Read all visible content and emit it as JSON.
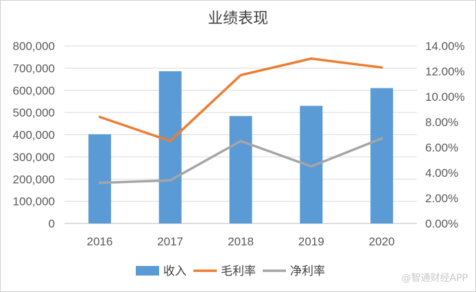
{
  "chart_data": {
    "type": "bar+line",
    "title": "业绩表现",
    "categories": [
      "2016",
      "2017",
      "2018",
      "2019",
      "2020"
    ],
    "series": [
      {
        "name": "收入",
        "type": "bar",
        "axis": "left",
        "color": "#5b9bd5",
        "values": [
          402000,
          686000,
          484000,
          530000,
          610000
        ]
      },
      {
        "name": "毛利率",
        "type": "line",
        "axis": "right",
        "color": "#ed7d31",
        "values": [
          8.4,
          6.5,
          11.7,
          13.0,
          12.3
        ]
      },
      {
        "name": "净利率",
        "type": "line",
        "axis": "right",
        "color": "#a5a5a5",
        "values": [
          3.2,
          3.4,
          6.5,
          4.5,
          6.7
        ]
      }
    ],
    "left_axis": {
      "min": 0,
      "max": 800000,
      "ticks": [
        "0",
        "100,000",
        "200,000",
        "300,000",
        "400,000",
        "500,000",
        "600,000",
        "700,000",
        "800,000"
      ]
    },
    "right_axis": {
      "min": 0,
      "max": 14,
      "ticks": [
        "0.00%",
        "2.00%",
        "4.00%",
        "6.00%",
        "8.00%",
        "10.00%",
        "12.00%",
        "14.00%"
      ]
    },
    "grid": true,
    "legend_position": "bottom"
  },
  "watermark": "@智通财经APP"
}
